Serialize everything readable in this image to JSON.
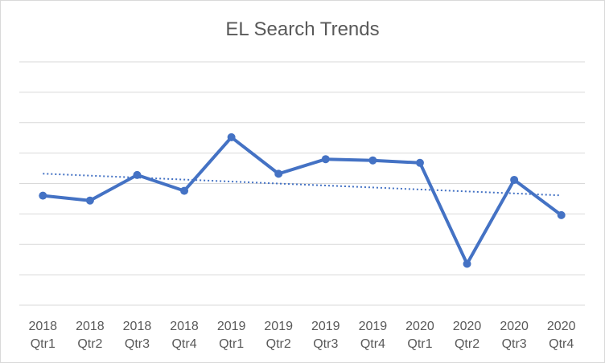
{
  "chart_data": {
    "type": "line",
    "title": "EL Search Trends",
    "categories": [
      [
        "2018",
        "Qtr1"
      ],
      [
        "2018",
        "Qtr2"
      ],
      [
        "2018",
        "Qtr3"
      ],
      [
        "2018",
        "Qtr4"
      ],
      [
        "2019",
        "Qtr1"
      ],
      [
        "2019",
        "Qtr2"
      ],
      [
        "2019",
        "Qtr3"
      ],
      [
        "2019",
        "Qtr4"
      ],
      [
        "2020",
        "Qtr1"
      ],
      [
        "2020",
        "Qtr2"
      ],
      [
        "2020",
        "Qtr3"
      ],
      [
        "2020",
        "Qtr4"
      ]
    ],
    "series": [
      {
        "values": [
          45,
          43,
          53.5,
          47,
          69,
          54,
          60,
          59.5,
          58.5,
          17,
          51.5,
          37
        ]
      }
    ],
    "trendline": {
      "type": "linear",
      "style": "dotted"
    },
    "ylim": [
      0,
      100
    ],
    "y_gridlines": 8,
    "grid": true,
    "y_tick_labels_shown": false,
    "xlabel": "",
    "ylabel": "",
    "colors": {
      "series": "#4472c4",
      "grid": "#d9d9d9",
      "text": "#595959",
      "border": "#d9d9d9"
    }
  }
}
